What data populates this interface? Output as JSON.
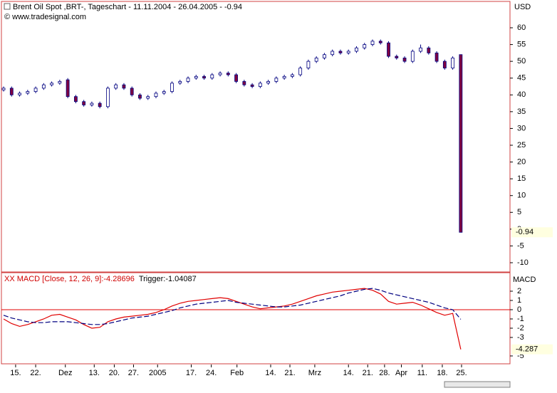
{
  "chart_data": [
    {
      "type": "candlestick",
      "title": "Brent Oil Spot ,BRT-, Tageschart - 11.11.2004 - 26.04.2005 - -0.94",
      "subtitle": "© www.tradesignal.com",
      "y_label": "USD",
      "x": [
        0,
        1,
        2,
        3,
        4,
        5,
        6,
        7,
        8,
        9,
        10,
        11,
        12,
        13,
        14,
        15,
        16,
        17,
        18,
        19,
        20,
        21,
        22,
        23,
        24,
        25,
        26,
        27,
        28,
        29,
        30,
        31,
        32,
        33,
        34,
        35,
        36,
        37,
        38,
        39,
        40,
        41,
        42,
        43,
        44,
        45,
        46,
        47,
        48,
        49,
        50,
        51,
        52,
        53,
        54,
        55,
        56,
        57
      ],
      "open": [
        41.5,
        42,
        40,
        40.5,
        41,
        42,
        43,
        43.5,
        44.5,
        39.5,
        38,
        37,
        37.5,
        36.5,
        42,
        43,
        42,
        40,
        39,
        39.5,
        40.5,
        41,
        43.5,
        44,
        45,
        45.5,
        45,
        46,
        46.5,
        46,
        44,
        43,
        42.5,
        43.5,
        44,
        45,
        45.5,
        46,
        48,
        50,
        51,
        52,
        53,
        52.5,
        53,
        54,
        55,
        56,
        55.5,
        51.5,
        51,
        50,
        53,
        54,
        52.5,
        50,
        48,
        52
      ],
      "high": [
        42.5,
        42.5,
        41,
        41.5,
        42.5,
        43.5,
        44,
        44.5,
        45,
        40,
        38.5,
        38,
        38,
        42.5,
        43.5,
        43.5,
        42.5,
        40.5,
        40,
        41,
        41.5,
        44,
        44.5,
        45.5,
        46,
        46,
        46.5,
        47,
        47,
        46.5,
        44.5,
        43.5,
        44,
        44.5,
        45.5,
        46,
        46.5,
        48.5,
        50.5,
        51.5,
        52.5,
        53.5,
        53.5,
        53.5,
        54.5,
        55.5,
        56.5,
        56.5,
        56,
        52,
        51.5,
        53.5,
        55,
        54.5,
        53,
        50.5,
        51.5,
        52
      ],
      "low": [
        41,
        39.5,
        39.5,
        40,
        40.5,
        41.5,
        42.5,
        43,
        39,
        37.5,
        36.5,
        36.5,
        36,
        36,
        41.5,
        41.5,
        39.5,
        38.5,
        38.5,
        39,
        40,
        40.5,
        43,
        43.5,
        44.5,
        44.5,
        44.5,
        45.5,
        45.5,
        43.5,
        42.5,
        42,
        42,
        43,
        43.5,
        44.5,
        45,
        45.5,
        47.5,
        49.5,
        50.5,
        51.5,
        52,
        52,
        52.5,
        53.5,
        54.5,
        55,
        51,
        50.5,
        49.5,
        49.5,
        52.5,
        52,
        49.5,
        47.5,
        47.5,
        -0.94
      ],
      "close": [
        42,
        40,
        40.5,
        41,
        42,
        43,
        43.5,
        44,
        39.5,
        38,
        37,
        37.5,
        36.5,
        42,
        43,
        42,
        40,
        39,
        39.5,
        40.5,
        41,
        43.5,
        44,
        45,
        45.5,
        45,
        46,
        46.5,
        46,
        44,
        43,
        42.5,
        43.5,
        44,
        45,
        45.5,
        46,
        48,
        50,
        51,
        52,
        53,
        52.5,
        53,
        54,
        55,
        56,
        55.5,
        51.5,
        51,
        50,
        53,
        54,
        52.5,
        50,
        48,
        51,
        -0.94
      ],
      "up_color": "#ffffff",
      "down_color": "#800040",
      "edge_color": "#000080",
      "xlim": [
        -0.27,
        63.14
      ],
      "ylim": [
        -12.76,
        67.85
      ],
      "yticks": [
        60,
        55,
        50,
        45,
        40,
        35,
        30,
        25,
        20,
        15,
        10,
        5,
        0,
        -5,
        -10
      ],
      "value_label": {
        "value": -0.94,
        "label": "-0.94"
      }
    },
    {
      "type": "line",
      "title": "XX MACD [Close, 12, 26, 9]:-4.28696",
      "title2": "Trigger:-1.04087",
      "y_label": "MACD",
      "x": [
        0,
        1,
        2,
        3,
        4,
        5,
        6,
        7,
        8,
        9,
        10,
        11,
        12,
        13,
        14,
        15,
        16,
        17,
        18,
        19,
        20,
        21,
        22,
        23,
        24,
        25,
        26,
        27,
        28,
        29,
        30,
        31,
        32,
        33,
        34,
        35,
        36,
        37,
        38,
        39,
        40,
        41,
        42,
        43,
        44,
        45,
        46,
        47,
        48,
        49,
        50,
        51,
        52,
        53,
        54,
        55,
        56,
        57
      ],
      "series": [
        {
          "color": "#e00000",
          "dash": false,
          "values": [
            -1.0,
            -1.5,
            -1.8,
            -1.6,
            -1.3,
            -1.0,
            -0.6,
            -0.5,
            -0.8,
            -1.1,
            -1.6,
            -2.0,
            -1.9,
            -1.3,
            -1.0,
            -0.8,
            -0.7,
            -0.6,
            -0.5,
            -0.3,
            0.0,
            0.4,
            0.7,
            0.9,
            1.0,
            1.1,
            1.2,
            1.3,
            1.2,
            0.9,
            0.6,
            0.3,
            0.1,
            0.2,
            0.3,
            0.4,
            0.6,
            0.9,
            1.2,
            1.5,
            1.7,
            1.9,
            2.0,
            2.1,
            2.2,
            2.3,
            2.1,
            1.7,
            0.9,
            0.6,
            0.7,
            0.8,
            0.5,
            0.1,
            -0.3,
            -0.6,
            -0.4,
            -4.287
          ]
        },
        {
          "color": "#000080",
          "dash": true,
          "values": [
            -0.6,
            -0.9,
            -1.1,
            -1.3,
            -1.4,
            -1.4,
            -1.3,
            -1.3,
            -1.3,
            -1.4,
            -1.5,
            -1.6,
            -1.6,
            -1.5,
            -1.3,
            -1.1,
            -0.9,
            -0.8,
            -0.7,
            -0.5,
            -0.3,
            -0.1,
            0.2,
            0.4,
            0.6,
            0.7,
            0.8,
            0.9,
            1.0,
            0.8,
            0.7,
            0.6,
            0.5,
            0.4,
            0.3,
            0.3,
            0.4,
            0.5,
            0.7,
            0.9,
            1.1,
            1.3,
            1.5,
            1.8,
            2.0,
            2.2,
            2.3,
            2.1,
            1.8,
            1.6,
            1.4,
            1.2,
            1.0,
            0.8,
            0.5,
            0.2,
            0.0,
            -1.04087
          ]
        }
      ],
      "zero_line_color": "#e00000",
      "xlim": [
        -0.27,
        63.14
      ],
      "ylim": [
        -5.85,
        4
      ],
      "yticks": [
        2,
        1,
        0,
        -1,
        -2,
        -3,
        -5
      ],
      "xticks": [
        {
          "value": 1.5,
          "label": "15."
        },
        {
          "value": 4.0,
          "label": "22."
        },
        {
          "value": 7.7,
          "label": "Dez"
        },
        {
          "value": 11.3,
          "label": "13."
        },
        {
          "value": 13.8,
          "label": "20."
        },
        {
          "value": 16.2,
          "label": "27."
        },
        {
          "value": 19.2,
          "label": "2005"
        },
        {
          "value": 23.4,
          "label": "17."
        },
        {
          "value": 25.9,
          "label": "24."
        },
        {
          "value": 29.1,
          "label": "Feb"
        },
        {
          "value": 33.3,
          "label": "14."
        },
        {
          "value": 35.7,
          "label": "21."
        },
        {
          "value": 38.8,
          "label": "Mrz"
        },
        {
          "value": 43.0,
          "label": "14."
        },
        {
          "value": 45.4,
          "label": "21."
        },
        {
          "value": 47.5,
          "label": "28."
        },
        {
          "value": 49.6,
          "label": "Apr"
        },
        {
          "value": 52.2,
          "label": "11."
        },
        {
          "value": 54.7,
          "label": "18."
        },
        {
          "value": 57.1,
          "label": "25."
        }
      ],
      "value_label": {
        "value": -4.287,
        "label": "-4.287"
      }
    }
  ]
}
